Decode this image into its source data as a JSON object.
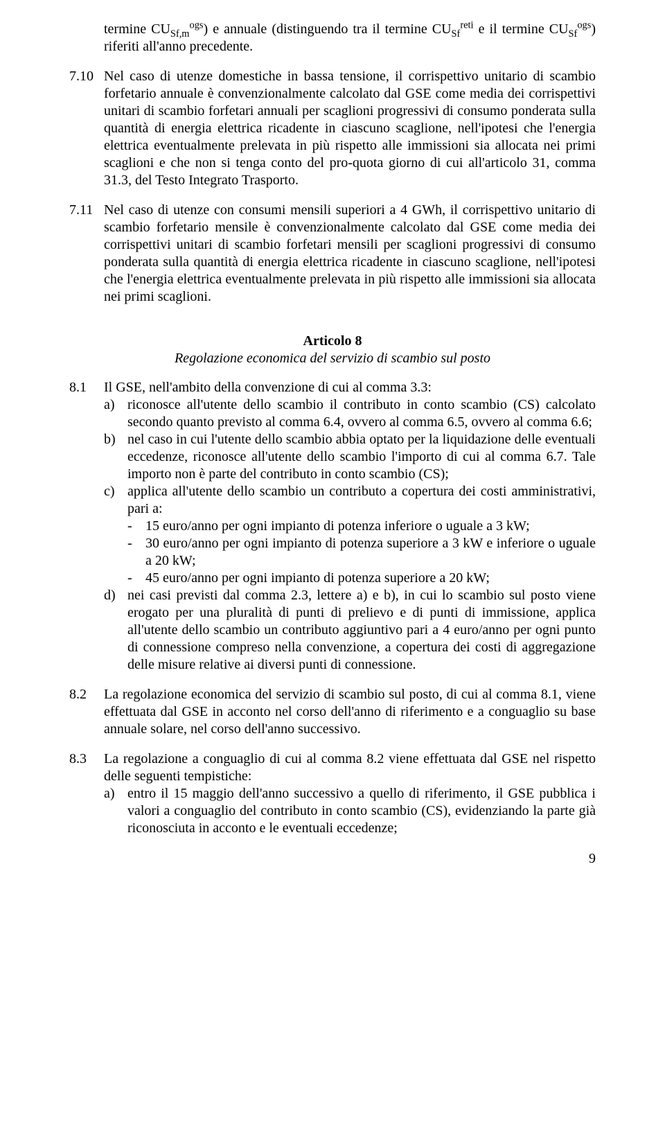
{
  "para_709_num": "",
  "para_709_html": "termine CU<sub>Sf,m</sub><sup>ogs</sup>) e annuale (distinguendo tra il termine CU<sub>Sf</sub><sup>reti</sup> e il termine CU<sub>Sf</sub><sup>ogs</sup>) riferiti all'anno precedente.",
  "para_710_num": "7.10",
  "para_710_html": "Nel caso di utenze domestiche in bassa tensione, il corrispettivo unitario di scambio forfetario annuale è convenzionalmente calcolato dal GSE come media dei corrispettivi unitari di scambio forfetari annuali per scaglioni progressivi di consumo ponderata sulla quantità di energia elettrica ricadente in ciascuno scaglione, nell'ipotesi che l'energia elettrica eventualmente prelevata in più rispetto alle immissioni sia allocata nei primi scaglioni e che non si tenga conto del pro-quota giorno di cui all'articolo 31, comma 31.3, del Testo Integrato Trasporto.",
  "para_711_num": "7.11",
  "para_711_html": "Nel caso di utenze con consumi mensili superiori a 4 GWh, il corrispettivo unitario di scambio forfetario mensile è convenzionalmente calcolato dal GSE come media dei corrispettivi unitari di scambio forfetari mensili per scaglioni progressivi di consumo ponderata sulla quantità di energia elettrica ricadente in ciascuno scaglione, nell'ipotesi che l'energia elettrica eventualmente prelevata in più rispetto alle immissioni sia allocata nei primi scaglioni.",
  "art8_title": "Articolo 8",
  "art8_sub": "Regolazione economica del servizio di scambio sul posto",
  "para_81_num": "8.1",
  "para_81_intro": "Il GSE, nell'ambito della convenzione di cui al comma 3.3:",
  "para_81_a_letter": "a)",
  "para_81_a": "riconosce all'utente dello scambio il contributo in conto scambio (CS) calcolato secondo quanto previsto al comma 6.4, ovvero al comma 6.5, ovvero al comma 6.6;",
  "para_81_b_letter": "b)",
  "para_81_b": "nel caso in cui l'utente dello scambio abbia optato per la liquidazione delle eventuali eccedenze, riconosce all'utente dello scambio l'importo di cui al comma 6.7. Tale importo non è parte del contributo in conto scambio (CS);",
  "para_81_c_letter": "c)",
  "para_81_c": "applica all'utente dello scambio un contributo a copertura dei costi amministrativi, pari a:",
  "para_81_c_d1": "15 euro/anno per ogni impianto di potenza inferiore o uguale a 3 kW;",
  "para_81_c_d2": "30 euro/anno per ogni impianto di potenza superiore a 3 kW e inferiore o uguale a 20 kW;",
  "para_81_c_d3": "45 euro/anno per ogni impianto di potenza superiore a 20 kW;",
  "para_81_d_letter": "d)",
  "para_81_d": "nei casi previsti dal comma 2.3, lettere a) e b), in cui lo scambio sul posto viene erogato per una pluralità di punti di prelievo e di punti di immissione, applica all'utente dello scambio un contributo aggiuntivo pari a 4 euro/anno per ogni punto di connessione compreso nella convenzione, a copertura dei costi di aggregazione delle misure relative ai diversi punti di connessione.",
  "para_82_num": "8.2",
  "para_82_html": "La regolazione economica del servizio di scambio sul posto, di cui al comma 8.1, viene effettuata dal GSE in acconto nel corso dell'anno di riferimento e a conguaglio su base annuale solare, nel corso dell'anno successivo.",
  "para_83_num": "8.3",
  "para_83_intro": "La regolazione a conguaglio di cui al comma 8.2 viene effettuata dal GSE nel rispetto delle seguenti tempistiche:",
  "para_83_a_letter": "a)",
  "para_83_a": "entro il 15 maggio dell'anno successivo a quello di riferimento, il GSE pubblica i valori a conguaglio del contributo in conto scambio (CS), evidenziando la parte già riconosciuta in acconto e le eventuali eccedenze;",
  "dash": "-",
  "page_number": "9"
}
